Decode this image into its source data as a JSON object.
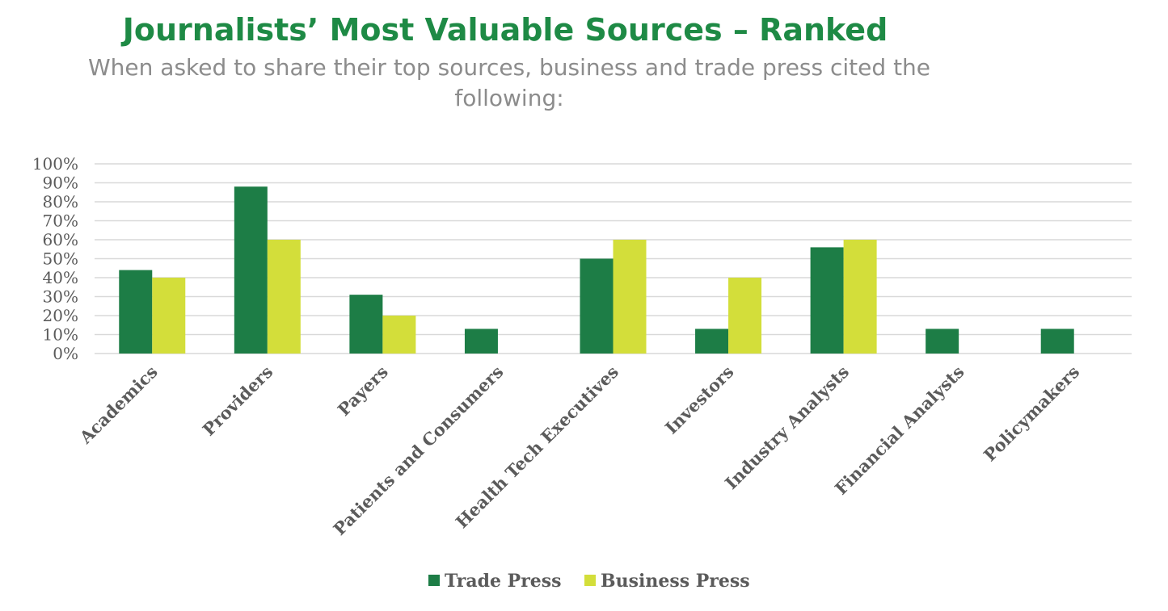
{
  "page": {
    "title": "Journalists’ Most Valuable Sources – Ranked",
    "subtitle_line1": "When asked to share their top sources, business and trade press cited the",
    "subtitle_line2": "following:"
  },
  "colors": {
    "title": "#1e8a45",
    "subtitle": "#8c8c8c",
    "trade": "#1d7d46",
    "business": "#d3de3a",
    "grid": "#d9d9d9",
    "axis_text": "#5b5b5b"
  },
  "chart_data": {
    "type": "bar",
    "categories": [
      "Academics",
      "Providers",
      "Payers",
      "Patients and Consumers",
      "Health Tech Executives",
      "Investors",
      "Industry Analysts",
      "Financial Analysts",
      "Policymakers"
    ],
    "series": [
      {
        "name": "Trade Press",
        "values": [
          44,
          88,
          31,
          13,
          50,
          13,
          56,
          13,
          13
        ]
      },
      {
        "name": "Business Press",
        "values": [
          40,
          60,
          20,
          0,
          60,
          40,
          60,
          0,
          0
        ]
      }
    ],
    "ylim": [
      0,
      100
    ],
    "yticks": [
      "0%",
      "10%",
      "20%",
      "30%",
      "40%",
      "50%",
      "60%",
      "70%",
      "80%",
      "90%",
      "100%"
    ],
    "grid": true,
    "legend_position": "bottom"
  }
}
